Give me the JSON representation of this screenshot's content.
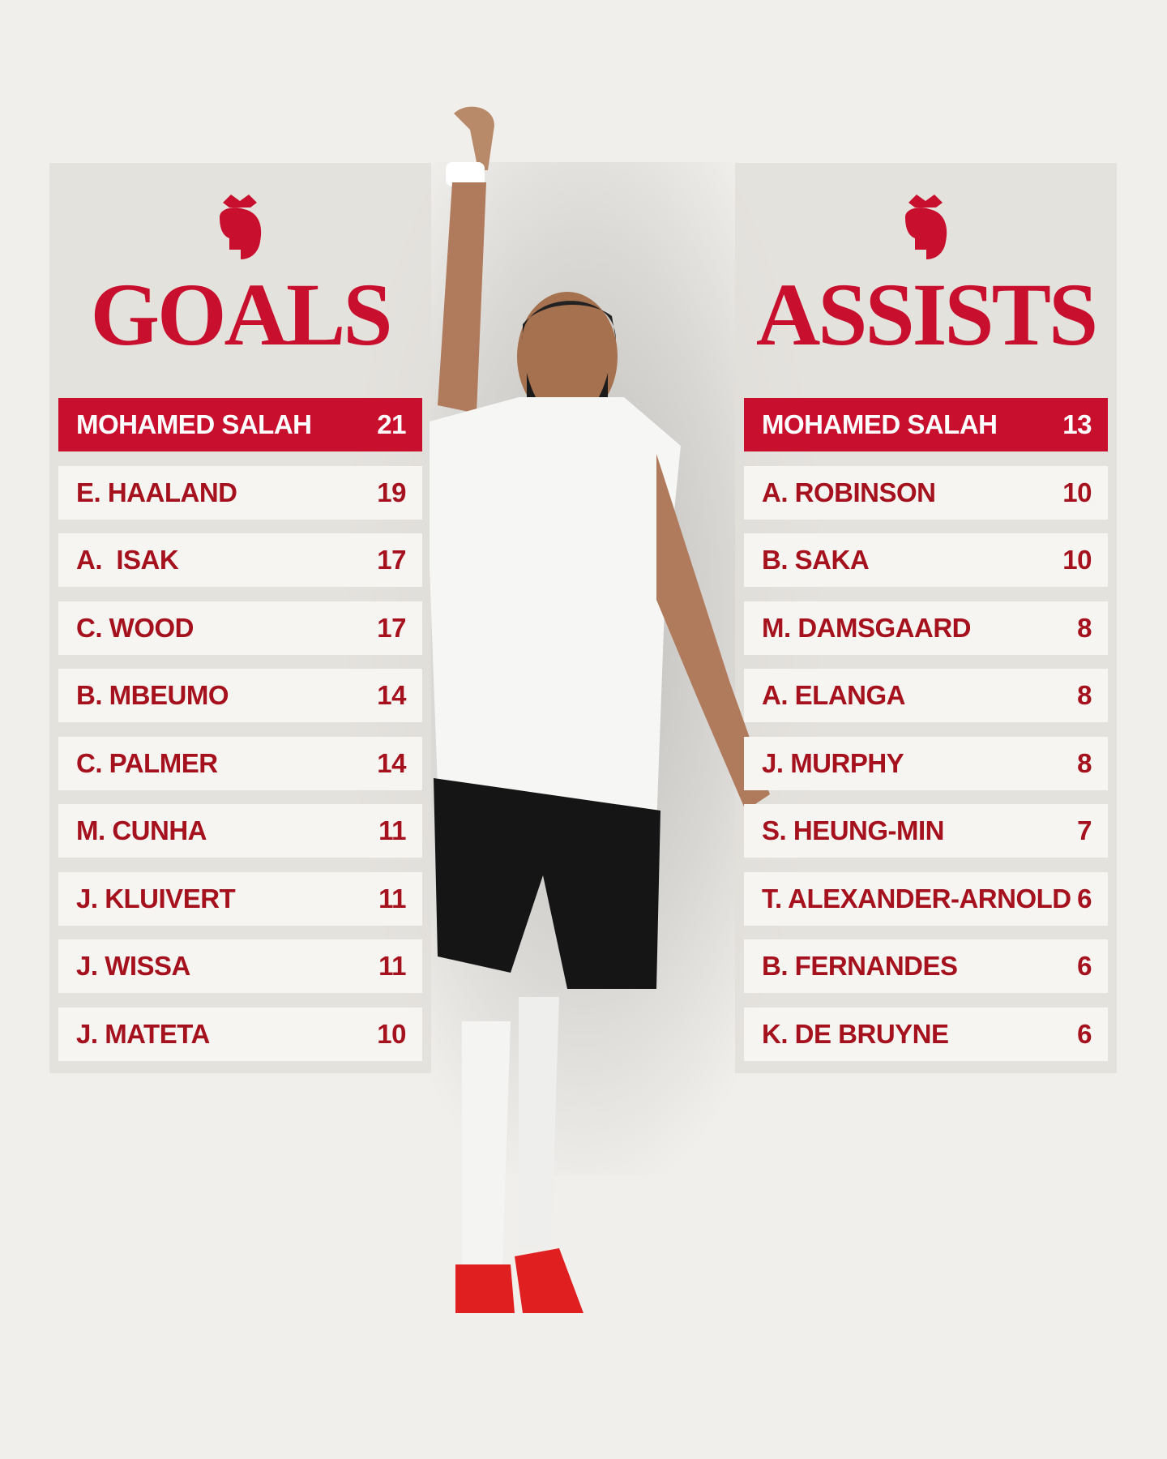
{
  "goals": {
    "title": "GOALS",
    "rows": [
      {
        "name": "MOHAMED SALAH",
        "value": 21
      },
      {
        "name": "E. HAALAND",
        "value": 19
      },
      {
        "name": "A.  ISAK",
        "value": 17
      },
      {
        "name": "C. WOOD",
        "value": 17
      },
      {
        "name": "B. MBEUMO",
        "value": 14
      },
      {
        "name": "C. PALMER",
        "value": 14
      },
      {
        "name": "M. CUNHA",
        "value": 11
      },
      {
        "name": "J. KLUIVERT",
        "value": 11
      },
      {
        "name": "J. WISSA",
        "value": 11
      },
      {
        "name": "J. MATETA",
        "value": 10
      }
    ]
  },
  "assists": {
    "title": "ASSISTS",
    "rows": [
      {
        "name": "MOHAMED SALAH",
        "value": 13
      },
      {
        "name": "A. ROBINSON",
        "value": 10
      },
      {
        "name": "B. SAKA",
        "value": 10
      },
      {
        "name": "M. DAMSGAARD",
        "value": 8
      },
      {
        "name": "A. ELANGA",
        "value": 8
      },
      {
        "name": "J. MURPHY",
        "value": 8
      },
      {
        "name": "S. HEUNG-MIN",
        "value": 7
      },
      {
        "name": "T. ALEXANDER-ARNOLD",
        "value": 6
      },
      {
        "name": "B. FERNANDES",
        "value": 6
      },
      {
        "name": "K. DE BRUYNE",
        "value": 6
      }
    ]
  }
}
